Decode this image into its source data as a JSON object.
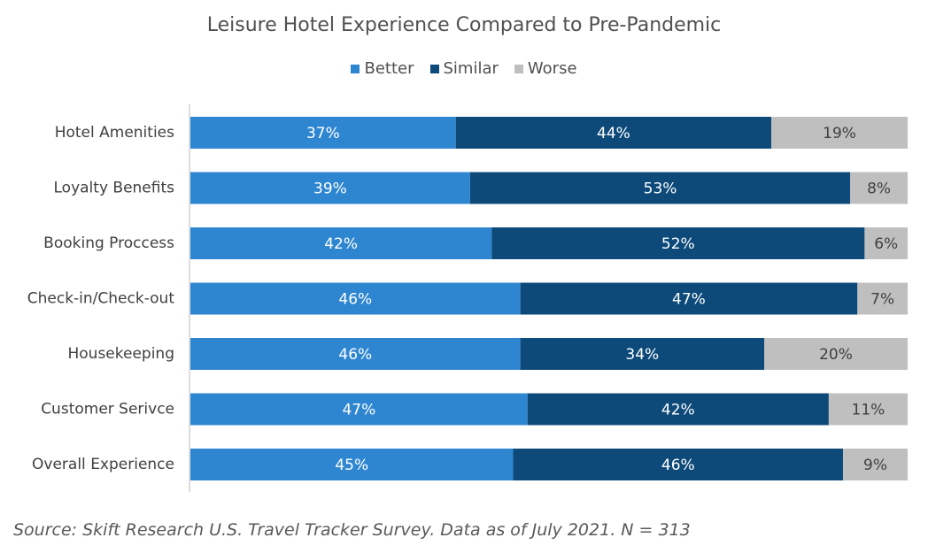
{
  "chart_data": {
    "type": "bar",
    "orientation": "horizontal",
    "stacked": true,
    "title": "Leisure Hotel Experience Compared to Pre-Pandemic",
    "categories": [
      "Hotel Amenities",
      "Loyalty Benefits",
      "Booking Proccess",
      "Check-in/Check-out",
      "Housekeeping",
      "Customer Serivce",
      "Overall Experience"
    ],
    "series": [
      {
        "name": "Better",
        "color": "#2e86d1",
        "label_color": "#ffffff",
        "values": [
          37,
          39,
          42,
          46,
          46,
          47,
          45
        ]
      },
      {
        "name": "Similar",
        "color": "#0d4a7a",
        "label_color": "#ffffff",
        "values": [
          44,
          53,
          52,
          47,
          34,
          42,
          46
        ]
      },
      {
        "name": "Worse",
        "color": "#bfbfbf",
        "label_color": "#404040",
        "values": [
          19,
          8,
          6,
          7,
          20,
          11,
          9
        ]
      }
    ],
    "value_suffix": "%",
    "xlim": [
      0,
      100
    ],
    "legend": "top-center",
    "grid": false
  },
  "source": "Source: Skift Research U.S. Travel Tracker Survey. Data as of July 2021. N = 313"
}
